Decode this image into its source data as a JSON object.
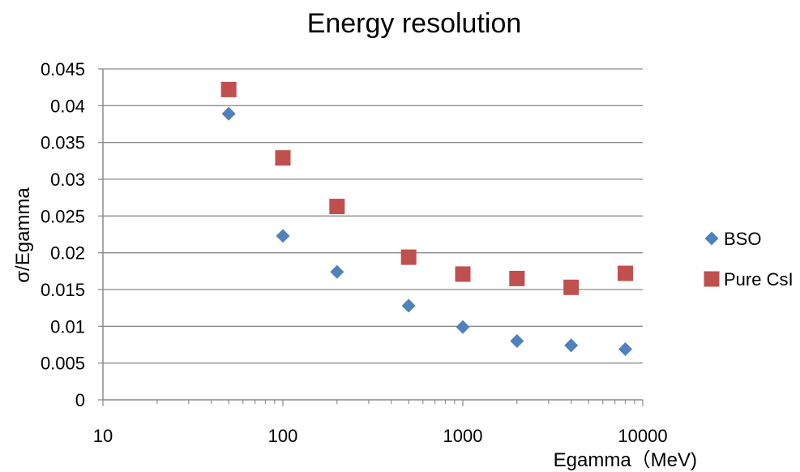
{
  "chart_data": {
    "type": "scatter",
    "title": "Energy resolution",
    "xlabel": "Egamma（MeV)",
    "ylabel": "σ/Egamma",
    "x_scale": "log",
    "xlim": [
      10,
      10000
    ],
    "ylim": [
      0,
      0.045
    ],
    "x_ticks": [
      "10",
      "100",
      "1000",
      "10000"
    ],
    "y_ticks": [
      "0",
      "0.005",
      "0.01",
      "0.015",
      "0.02",
      "0.025",
      "0.03",
      "0.035",
      "0.04",
      "0.045"
    ],
    "grid": "horizontal",
    "legend_position": "right",
    "series": [
      {
        "name": "BSO",
        "marker": "diamond",
        "color": "#4F81BD",
        "x": [
          50,
          100,
          200,
          500,
          1000,
          2000,
          4000,
          8000
        ],
        "y": [
          0.0389,
          0.0223,
          0.0174,
          0.0128,
          0.0099,
          0.008,
          0.0074,
          0.0069
        ]
      },
      {
        "name": "Pure CsI",
        "marker": "square",
        "color": "#C0504D",
        "x": [
          50,
          100,
          200,
          500,
          1000,
          2000,
          4000,
          8000
        ],
        "y": [
          0.0422,
          0.0329,
          0.0263,
          0.0194,
          0.0171,
          0.0165,
          0.0153,
          0.0172
        ]
      }
    ]
  }
}
